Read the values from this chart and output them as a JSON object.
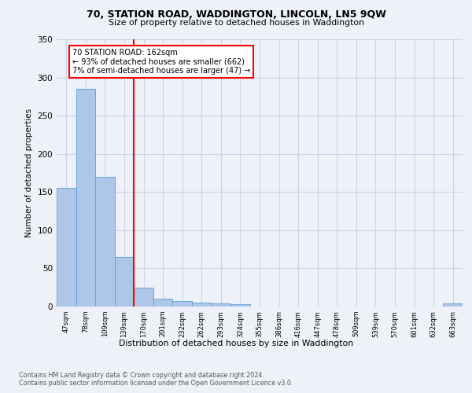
{
  "title1": "70, STATION ROAD, WADDINGTON, LINCOLN, LN5 9QW",
  "title2": "Size of property relative to detached houses in Waddington",
  "xlabel": "Distribution of detached houses by size in Waddington",
  "ylabel": "Number of detached properties",
  "categories": [
    "47sqm",
    "78sqm",
    "109sqm",
    "139sqm",
    "170sqm",
    "201sqm",
    "232sqm",
    "262sqm",
    "293sqm",
    "324sqm",
    "355sqm",
    "386sqm",
    "416sqm",
    "447sqm",
    "478sqm",
    "509sqm",
    "539sqm",
    "570sqm",
    "601sqm",
    "632sqm",
    "663sqm"
  ],
  "values": [
    155,
    285,
    170,
    65,
    25,
    10,
    7,
    5,
    4,
    3,
    0,
    0,
    0,
    0,
    0,
    0,
    0,
    0,
    0,
    0,
    4
  ],
  "bar_color": "#aec6e8",
  "bar_edge_color": "#5a9fd4",
  "vline_color": "red",
  "vline_x_index": 3.5,
  "annotation_text": "70 STATION ROAD: 162sqm\n← 93% of detached houses are smaller (662)\n7% of semi-detached houses are larger (47) →",
  "annotation_box_color": "white",
  "annotation_box_edge": "red",
  "ylim": [
    0,
    350
  ],
  "yticks": [
    0,
    50,
    100,
    150,
    200,
    250,
    300,
    350
  ],
  "footer1": "Contains HM Land Registry data © Crown copyright and database right 2024.",
  "footer2": "Contains public sector information licensed under the Open Government Licence v3.0.",
  "bg_color": "#eef2f8",
  "plot_bg_color": "#eef2f8",
  "grid_color": "#c8d4e8"
}
